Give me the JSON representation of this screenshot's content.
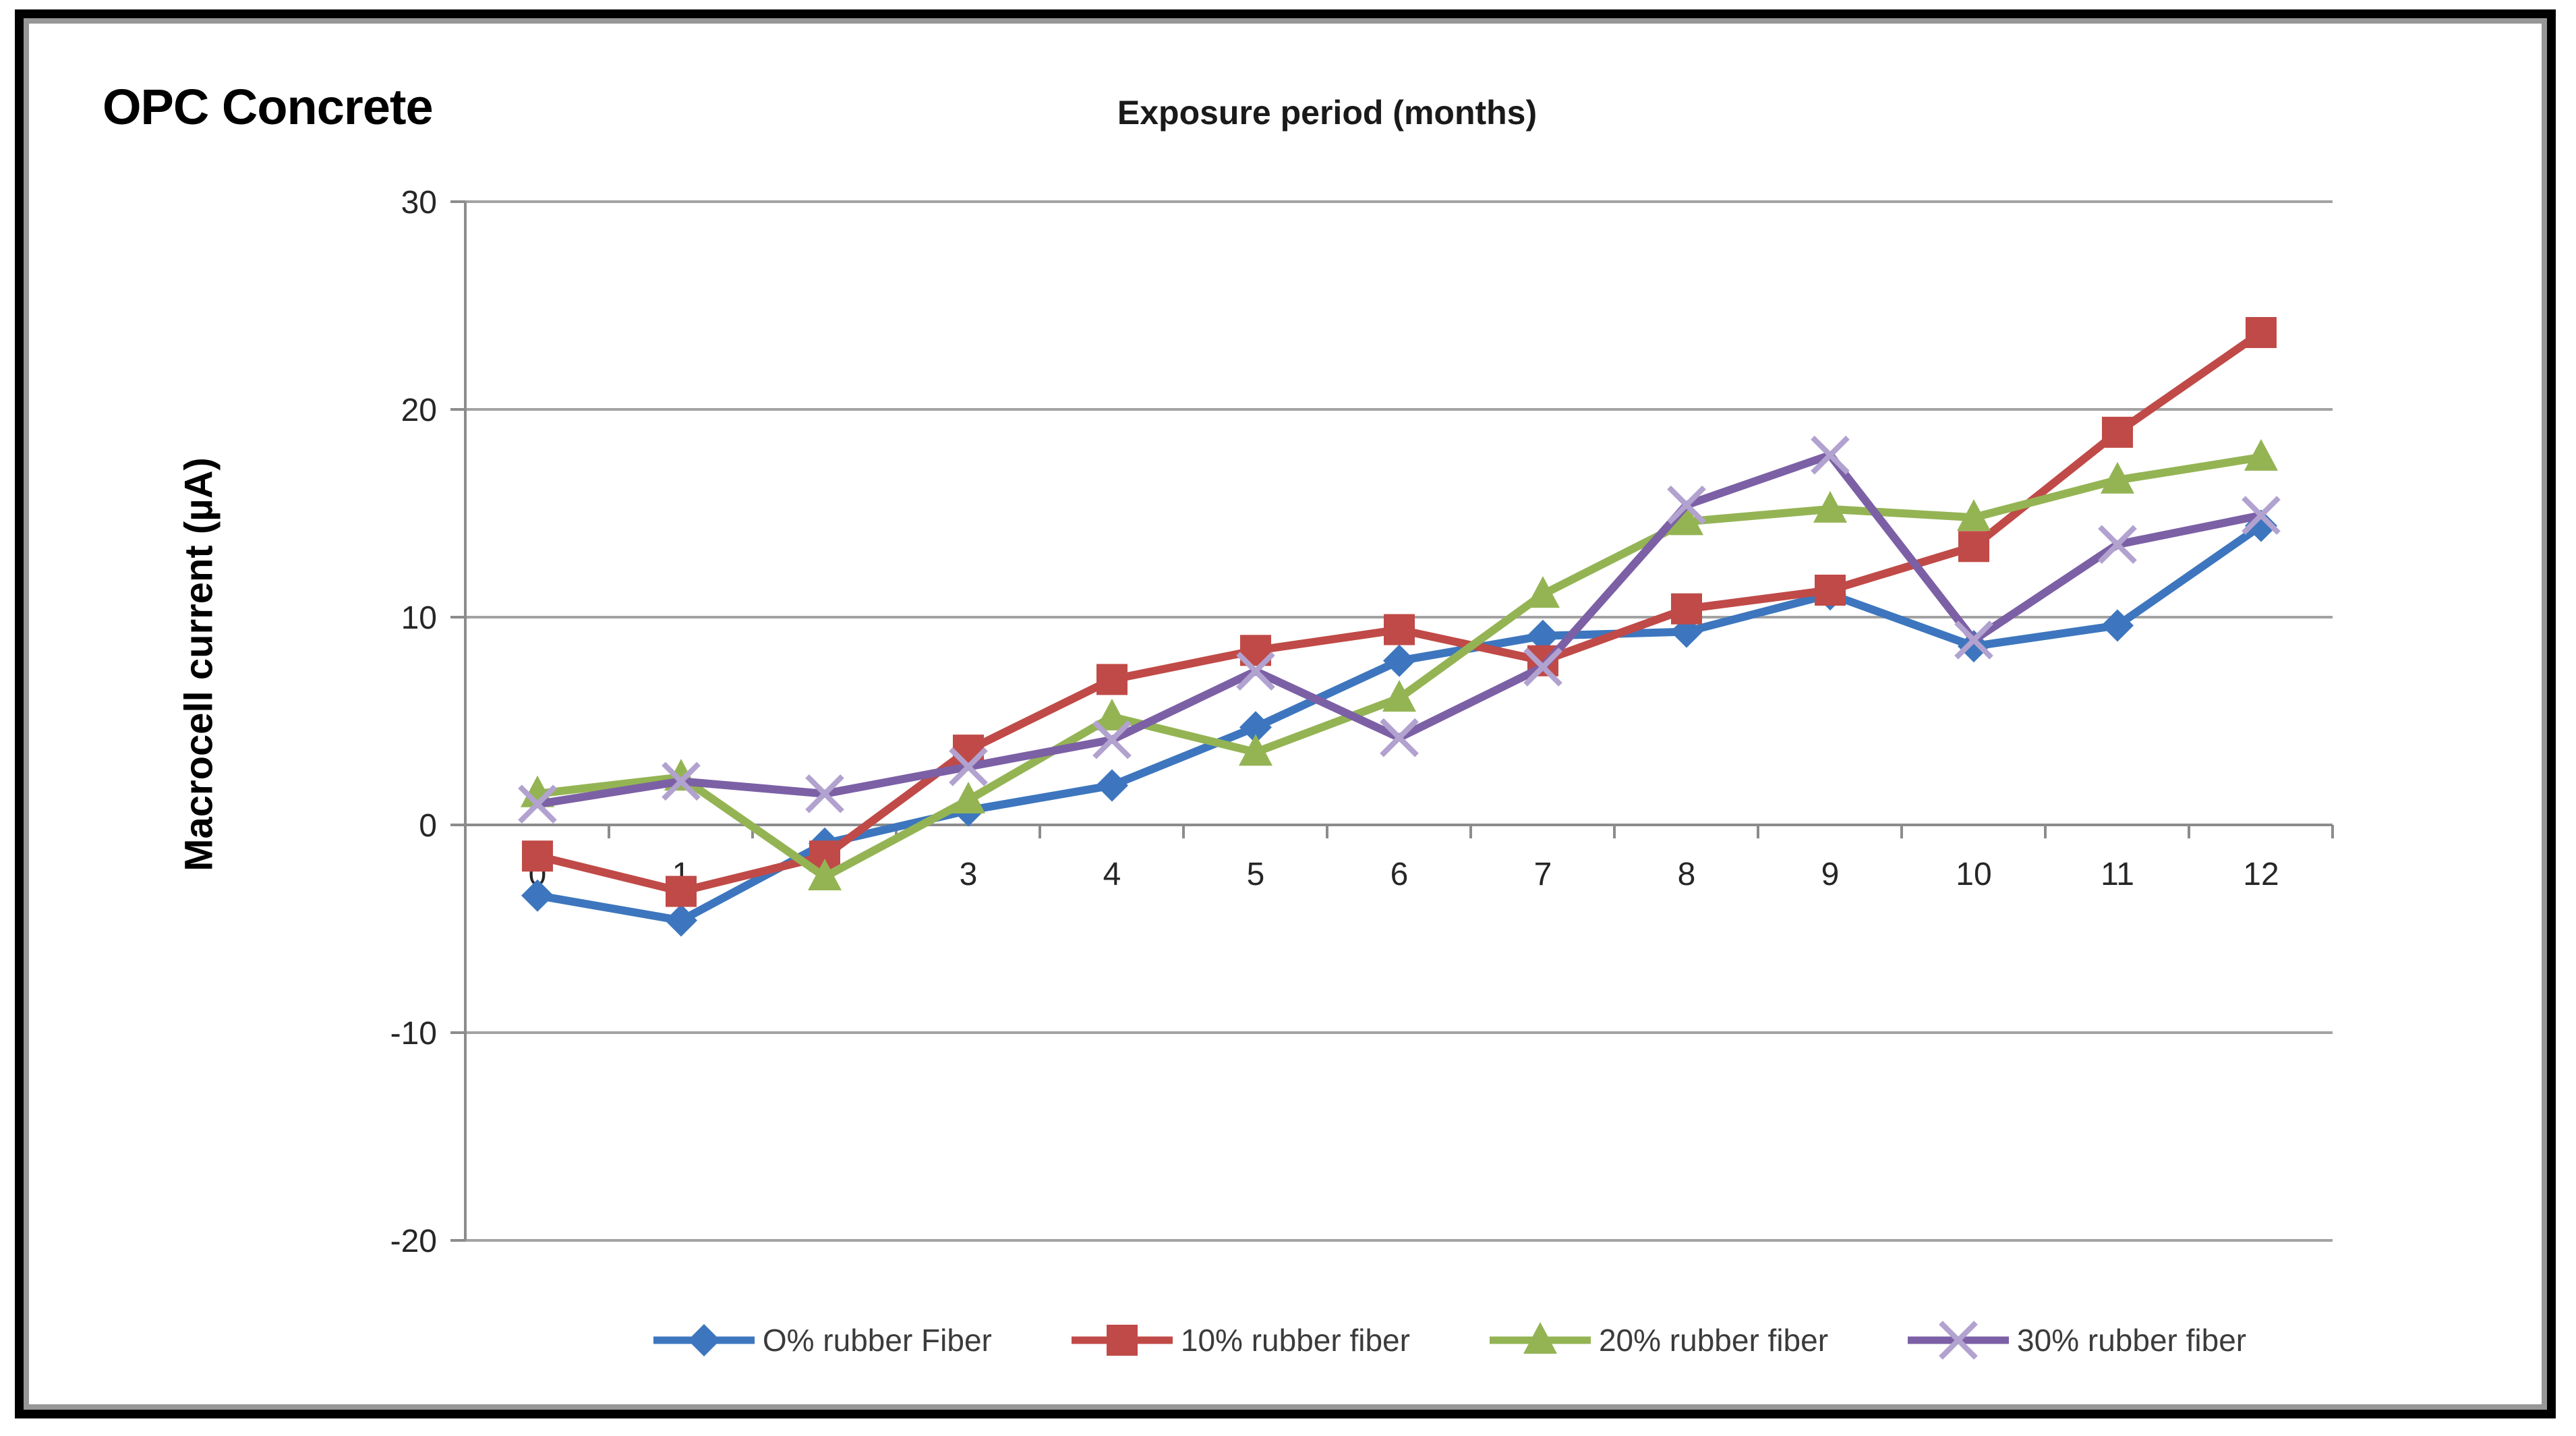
{
  "chart_data": {
    "type": "line",
    "title": "OPC Concrete",
    "xlabel": "Exposure period (months)",
    "xlabel_position": "top",
    "ylabel": "Macrocell current (µA)",
    "x": [
      0,
      1,
      2,
      3,
      4,
      5,
      6,
      7,
      8,
      9,
      10,
      11,
      12
    ],
    "yticks": [
      30,
      20,
      10,
      0,
      -10,
      -20
    ],
    "ylim": [
      -20,
      30
    ],
    "grid": true,
    "legend_position": "bottom",
    "series": [
      {
        "name": "O% rubber Fiber",
        "marker": "diamond",
        "color": "#3D76BE",
        "values": [
          -3.4,
          -4.6,
          -0.9,
          0.7,
          1.9,
          4.7,
          7.9,
          9.1,
          9.3,
          11.1,
          8.6,
          9.6,
          14.4
        ]
      },
      {
        "name": "10% rubber fiber",
        "marker": "square",
        "color": "#C04A47",
        "values": [
          -1.5,
          -3.2,
          -1.5,
          3.6,
          7.0,
          8.4,
          9.4,
          7.9,
          10.4,
          11.3,
          13.4,
          18.9,
          23.7
        ]
      },
      {
        "name": "20% rubber fiber",
        "marker": "triangle",
        "color": "#94B454",
        "values": [
          1.5,
          2.3,
          -2.5,
          1.2,
          5.2,
          3.5,
          6.1,
          11.1,
          14.6,
          15.2,
          14.8,
          16.6,
          17.7
        ]
      },
      {
        "name": "30% rubber fiber",
        "marker": "x",
        "color": "#7C60A5",
        "x_marker_color": "#B2A2CF",
        "values": [
          1.0,
          2.1,
          1.5,
          2.8,
          4.1,
          7.4,
          4.2,
          7.6,
          15.4,
          17.8,
          8.9,
          13.5,
          14.9
        ]
      }
    ],
    "colors": {
      "gridline": "#A3A3A3",
      "axis": "#8C8C8C",
      "tick_label": "#262626",
      "frame_border": "#000000",
      "frame_inner_shadow": "#979797"
    }
  }
}
